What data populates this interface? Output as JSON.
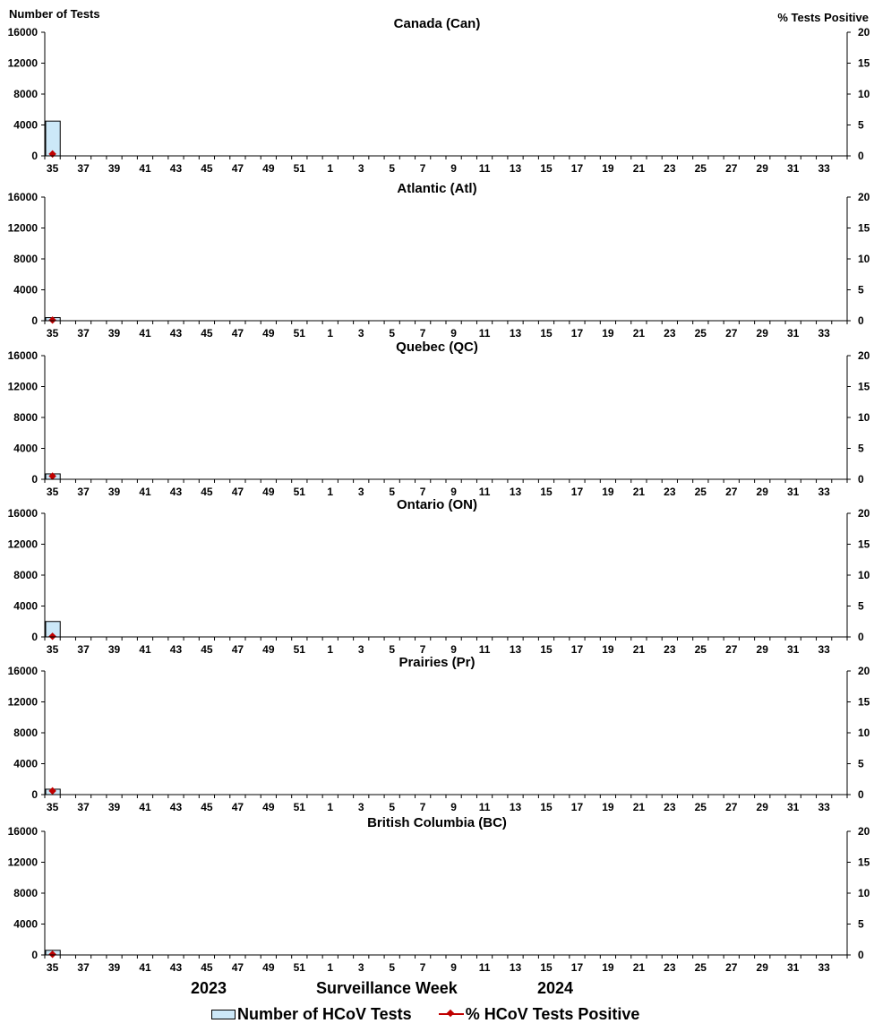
{
  "header": {
    "left_axis_title": "Number of Tests",
    "right_axis_title": "%  Tests Positive"
  },
  "footer": {
    "year_left": "2023",
    "x_axis_title": "Surveillance Week",
    "year_right": "2024"
  },
  "legend": {
    "tests_label": "Number of HCoV Tests",
    "positive_label": "% HCoV Tests Positive"
  },
  "colors": {
    "bar_fill": "#cce8f8",
    "line": "#c00000",
    "axis": "#000000"
  },
  "chart_data": [
    {
      "type": "bar",
      "title": "Canada (Can)",
      "x_tick_labels": [
        "35",
        "37",
        "39",
        "41",
        "43",
        "45",
        "47",
        "49",
        "51",
        "1",
        "3",
        "5",
        "7",
        "9",
        "11",
        "13",
        "15",
        "17",
        "19",
        "21",
        "23",
        "25",
        "27",
        "29",
        "31",
        "33"
      ],
      "categories": [
        "35"
      ],
      "series": [
        {
          "name": "Number of HCoV Tests",
          "type": "bar",
          "axis": "left",
          "values": [
            4500
          ]
        },
        {
          "name": "% HCoV Tests Positive",
          "type": "line",
          "axis": "right",
          "values": [
            0.3
          ]
        }
      ],
      "ylim_left": [
        0,
        16000
      ],
      "yticks_left": [
        0,
        4000,
        8000,
        12000,
        16000
      ],
      "ylim_right": [
        0,
        20
      ],
      "yticks_right": [
        0,
        5,
        10,
        15,
        20
      ]
    },
    {
      "type": "bar",
      "title": "Atlantic (Atl)",
      "x_tick_labels": [
        "35",
        "37",
        "39",
        "41",
        "43",
        "45",
        "47",
        "49",
        "51",
        "1",
        "3",
        "5",
        "7",
        "9",
        "11",
        "13",
        "15",
        "17",
        "19",
        "21",
        "23",
        "25",
        "27",
        "29",
        "31",
        "33"
      ],
      "categories": [
        "35"
      ],
      "series": [
        {
          "name": "Number of HCoV Tests",
          "type": "bar",
          "axis": "left",
          "values": [
            400
          ]
        },
        {
          "name": "% HCoV Tests Positive",
          "type": "line",
          "axis": "right",
          "values": [
            0.1
          ]
        }
      ],
      "ylim_left": [
        0,
        16000
      ],
      "yticks_left": [
        0,
        4000,
        8000,
        12000,
        16000
      ],
      "ylim_right": [
        0,
        20
      ],
      "yticks_right": [
        0,
        5,
        10,
        15,
        20
      ]
    },
    {
      "type": "bar",
      "title": "Quebec (QC)",
      "x_tick_labels": [
        "35",
        "37",
        "39",
        "41",
        "43",
        "45",
        "47",
        "49",
        "51",
        "1",
        "3",
        "5",
        "7",
        "9",
        "11",
        "13",
        "15",
        "17",
        "19",
        "21",
        "23",
        "25",
        "27",
        "29",
        "31",
        "33"
      ],
      "categories": [
        "35"
      ],
      "series": [
        {
          "name": "Number of HCoV Tests",
          "type": "bar",
          "axis": "left",
          "values": [
            700
          ]
        },
        {
          "name": "% HCoV Tests Positive",
          "type": "line",
          "axis": "right",
          "values": [
            0.5
          ]
        }
      ],
      "ylim_left": [
        0,
        16000
      ],
      "yticks_left": [
        0,
        4000,
        8000,
        12000,
        16000
      ],
      "ylim_right": [
        0,
        20
      ],
      "yticks_right": [
        0,
        5,
        10,
        15,
        20
      ]
    },
    {
      "type": "bar",
      "title": "Ontario (ON)",
      "x_tick_labels": [
        "35",
        "37",
        "39",
        "41",
        "43",
        "45",
        "47",
        "49",
        "51",
        "1",
        "3",
        "5",
        "7",
        "9",
        "11",
        "13",
        "15",
        "17",
        "19",
        "21",
        "23",
        "25",
        "27",
        "29",
        "31",
        "33"
      ],
      "categories": [
        "35"
      ],
      "series": [
        {
          "name": "Number of HCoV Tests",
          "type": "bar",
          "axis": "left",
          "values": [
            2000
          ]
        },
        {
          "name": "% HCoV Tests Positive",
          "type": "line",
          "axis": "right",
          "values": [
            0.1
          ]
        }
      ],
      "ylim_left": [
        0,
        16000
      ],
      "yticks_left": [
        0,
        4000,
        8000,
        12000,
        16000
      ],
      "ylim_right": [
        0,
        20
      ],
      "yticks_right": [
        0,
        5,
        10,
        15,
        20
      ]
    },
    {
      "type": "bar",
      "title": "Prairies (Pr)",
      "x_tick_labels": [
        "35",
        "37",
        "39",
        "41",
        "43",
        "45",
        "47",
        "49",
        "51",
        "1",
        "3",
        "5",
        "7",
        "9",
        "11",
        "13",
        "15",
        "17",
        "19",
        "21",
        "23",
        "25",
        "27",
        "29",
        "31",
        "33"
      ],
      "categories": [
        "35"
      ],
      "series": [
        {
          "name": "Number of HCoV Tests",
          "type": "bar",
          "axis": "left",
          "values": [
            700
          ]
        },
        {
          "name": "% HCoV Tests Positive",
          "type": "line",
          "axis": "right",
          "values": [
            0.6
          ]
        }
      ],
      "ylim_left": [
        0,
        16000
      ],
      "yticks_left": [
        0,
        4000,
        8000,
        12000,
        16000
      ],
      "ylim_right": [
        0,
        20
      ],
      "yticks_right": [
        0,
        5,
        10,
        15,
        20
      ]
    },
    {
      "type": "bar",
      "title": "British Columbia (BC)",
      "x_tick_labels": [
        "35",
        "37",
        "39",
        "41",
        "43",
        "45",
        "47",
        "49",
        "51",
        "1",
        "3",
        "5",
        "7",
        "9",
        "11",
        "13",
        "15",
        "17",
        "19",
        "21",
        "23",
        "25",
        "27",
        "29",
        "31",
        "33"
      ],
      "categories": [
        "35"
      ],
      "series": [
        {
          "name": "Number of HCoV Tests",
          "type": "bar",
          "axis": "left",
          "values": [
            600
          ]
        },
        {
          "name": "% HCoV Tests Positive",
          "type": "line",
          "axis": "right",
          "values": [
            0.1
          ]
        }
      ],
      "ylim_left": [
        0,
        16000
      ],
      "yticks_left": [
        0,
        4000,
        8000,
        12000,
        16000
      ],
      "ylim_right": [
        0,
        20
      ],
      "yticks_right": [
        0,
        5,
        10,
        15,
        20
      ]
    }
  ]
}
